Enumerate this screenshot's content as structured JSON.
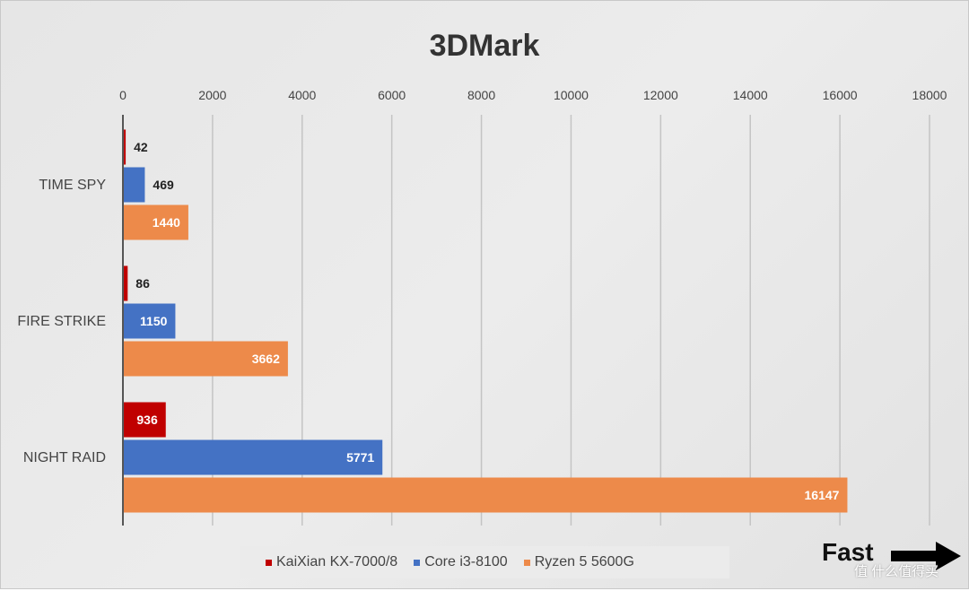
{
  "chart_data": {
    "type": "bar",
    "orientation": "horizontal",
    "title": "3DMark",
    "categories": [
      "TIME SPY",
      "FIRE STRIKE",
      "NIGHT RAID"
    ],
    "series": [
      {
        "name": "KaiXian KX-7000/8",
        "color": "#c00000",
        "values": [
          42,
          86,
          936
        ]
      },
      {
        "name": "Core i3-8100",
        "color": "#4472c4",
        "values": [
          469,
          1150,
          5771
        ]
      },
      {
        "name": "Ryzen 5 5600G",
        "color": "#ed8a4a",
        "values": [
          1440,
          3662,
          16147
        ]
      }
    ],
    "xlim": [
      0,
      18000
    ],
    "xticks": [
      0,
      2000,
      4000,
      6000,
      8000,
      10000,
      12000,
      14000,
      16000,
      18000
    ],
    "xaxis_position": "top",
    "grid": true,
    "legend": "bottom",
    "annotation": "Fast",
    "annotation_icon": "right-arrow-icon"
  },
  "watermark": "值 什么值得买"
}
